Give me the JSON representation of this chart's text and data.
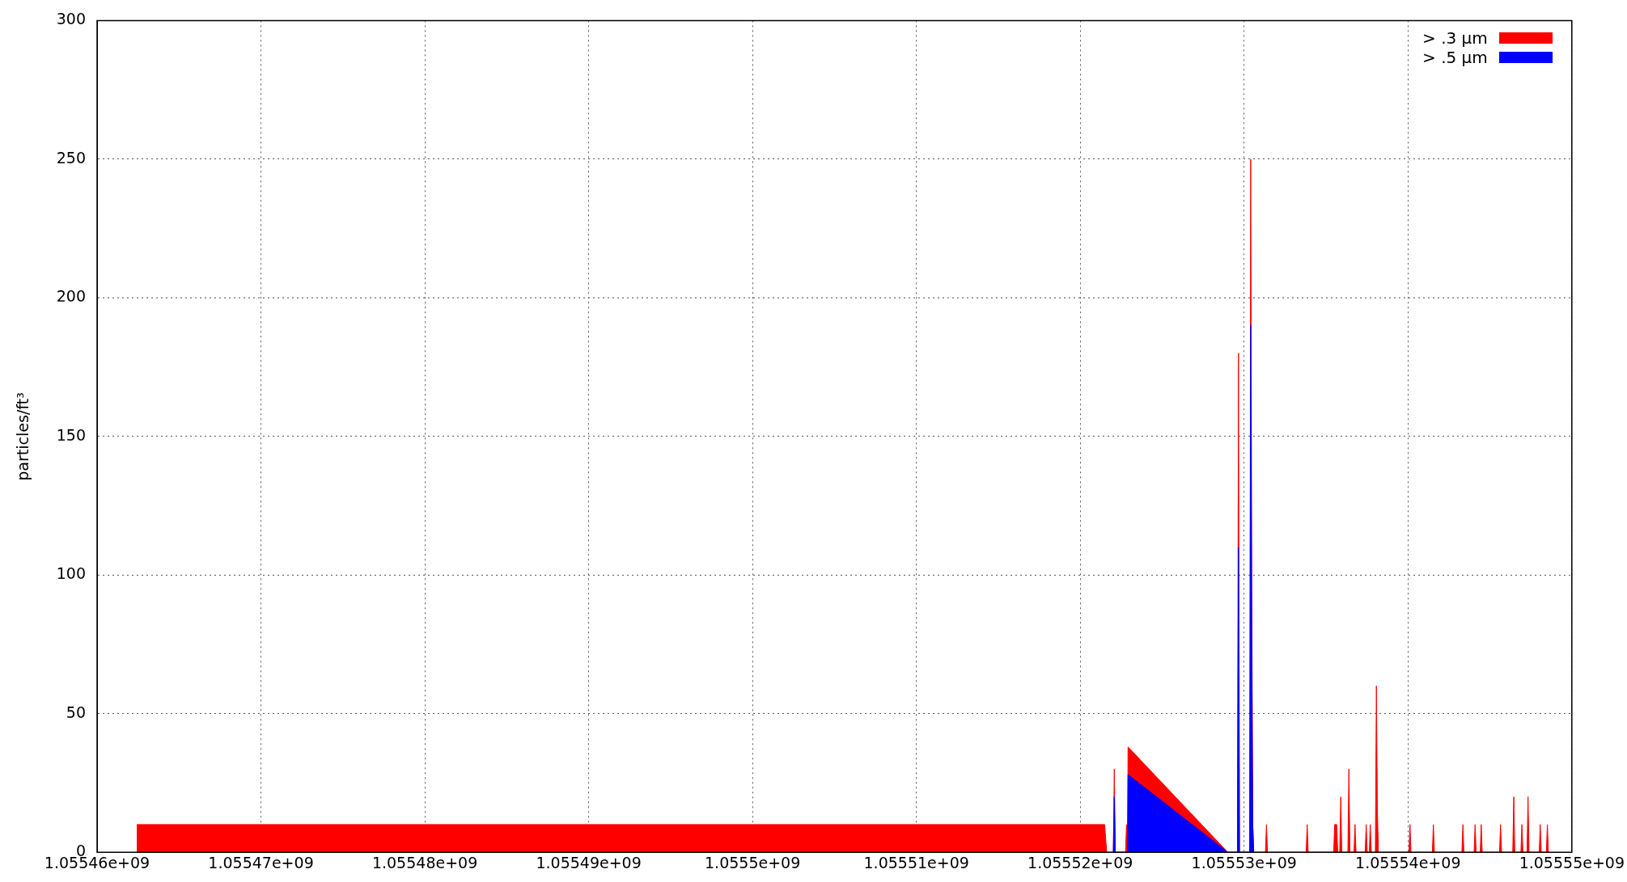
{
  "chart_data": {
    "type": "area",
    "ylabel": "particles/ft³",
    "legend": "top right",
    "grid": true,
    "xlim": [
      1055460000,
      1055550000
    ],
    "xticks": [
      {
        "value": 1055460000,
        "label": "1.05546e+09"
      },
      {
        "value": 1055470000,
        "label": "1.05547e+09"
      },
      {
        "value": 1055480000,
        "label": "1.05548e+09"
      },
      {
        "value": 1055490000,
        "label": "1.05549e+09"
      },
      {
        "value": 1055500000,
        "label": "1.0555e+09"
      },
      {
        "value": 1055510000,
        "label": "1.05551e+09"
      },
      {
        "value": 1055520000,
        "label": "1.05552e+09"
      },
      {
        "value": 1055530000,
        "label": "1.05553e+09"
      },
      {
        "value": 1055540000,
        "label": "1.05554e+09"
      },
      {
        "value": 1055550000,
        "label": "1.05555e+09"
      }
    ],
    "ylim": [
      0,
      300
    ],
    "yticks": [
      0,
      50,
      100,
      150,
      200,
      250,
      300
    ],
    "series": [
      {
        "name": "> .3 µm",
        "color": "#ff0000",
        "x": [
          1055462422,
          1055521489,
          1055521613,
          1055522017,
          1055522079,
          1055522141,
          1055522762,
          1055522824,
          1055522886,
          1055522917,
          1055529004,
          1055529594,
          1055529656,
          1055529718,
          1055530340,
          1055530402,
          1055530464,
          1055530526,
          1055530588,
          1055531302,
          1055531364,
          1055531426,
          1055533787,
          1055533849,
          1055533911,
          1055535464,
          1055535526,
          1055535650,
          1055535712,
          1055535836,
          1055535898,
          1055535960,
          1055536333,
          1055536395,
          1055536457,
          1055536706,
          1055536768,
          1055536830,
          1055537389,
          1055537451,
          1055537513,
          1055537638,
          1055537700,
          1055537762,
          1055538010,
          1055538072,
          1055538134,
          1055538196,
          1055540060,
          1055540122,
          1055540184,
          1055541488,
          1055541550,
          1055541612,
          1055543290,
          1055543352,
          1055543414,
          1055544035,
          1055544097,
          1055544159,
          1055544408,
          1055544470,
          1055544532,
          1055545588,
          1055545650,
          1055545712,
          1055546395,
          1055546457,
          1055546519,
          1055546892,
          1055546954,
          1055547016,
          1055547265,
          1055547327,
          1055547389,
          1055548010,
          1055548072,
          1055548134,
          1055548445,
          1055548507,
          1055548569
        ],
        "values": [
          10,
          10,
          0,
          0,
          30,
          0,
          0,
          10,
          0,
          38,
          0,
          0,
          180,
          0,
          0,
          250,
          100,
          10,
          0,
          0,
          10,
          0,
          0,
          10,
          0,
          0,
          10,
          10,
          0,
          0,
          20,
          0,
          0,
          30,
          0,
          0,
          10,
          0,
          0,
          10,
          0,
          0,
          10,
          0,
          0,
          60,
          15,
          0,
          0,
          10,
          0,
          0,
          10,
          0,
          0,
          10,
          0,
          0,
          10,
          0,
          0,
          10,
          0,
          0,
          10,
          0,
          0,
          20,
          0,
          0,
          10,
          0,
          0,
          20,
          0,
          0,
          10,
          0,
          0,
          10,
          0
        ]
      },
      {
        "name": "> .5 µm",
        "color": "#0000ff",
        "x": [
          1055522017,
          1055522079,
          1055522141,
          1055522886,
          1055522917,
          1055529004,
          1055529594,
          1055529656,
          1055529718,
          1055530340,
          1055530402,
          1055530464,
          1055530526,
          1055530588
        ],
        "values": [
          0,
          20,
          0,
          0,
          28,
          0,
          0,
          110,
          0,
          0,
          190,
          80,
          10,
          0
        ]
      }
    ]
  }
}
